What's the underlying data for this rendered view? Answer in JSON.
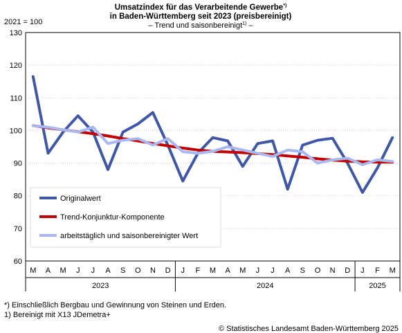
{
  "title_line1": "Umsatzindex für das Verarbeitende Gewerbe",
  "title_line1_sup": "*)",
  "title_line2": "in Baden-Württemberg seit 2023 (preisbereinigt)",
  "subtitle_pre": "– Trend und saisonbereinigt",
  "subtitle_sup": "1)",
  "subtitle_post": " –",
  "base_label": "2021 = 100",
  "footnote_1": "*) Einschließlich Bergbau und Gewinnung von Steinen und Erden.",
  "footnote_2": "1) Bereinigt mit X13 JDemetra+",
  "copyright": "© Statistisches Landesamt Baden-Württemberg 2025",
  "chart_data": {
    "type": "line",
    "ylim": [
      60,
      130
    ],
    "yticks": [
      60,
      70,
      80,
      90,
      100,
      110,
      120,
      130
    ],
    "grid": true,
    "legend_position": "bottom-left",
    "categories": [
      "M",
      "A",
      "M",
      "J",
      "J",
      "A",
      "S",
      "O",
      "N",
      "D",
      "J",
      "F",
      "M",
      "A",
      "M",
      "J",
      "J",
      "A",
      "S",
      "O",
      "N",
      "D",
      "J",
      "F",
      "M"
    ],
    "year_groups": [
      {
        "label": "2023",
        "start": 0,
        "end": 9
      },
      {
        "label": "2024",
        "start": 10,
        "end": 21
      },
      {
        "label": "2025",
        "start": 22,
        "end": 24
      }
    ],
    "series": [
      {
        "name": "Originalwert",
        "color": "#3f57a6",
        "width": 4,
        "values": [
          116.5,
          93.0,
          99.5,
          104.5,
          99.5,
          88.0,
          99.5,
          102.0,
          105.5,
          95.5,
          84.5,
          93.0,
          97.8,
          96.8,
          89.0,
          96.0,
          96.8,
          82.0,
          95.5,
          97.0,
          97.6,
          90.0,
          81.0,
          88.5,
          97.8
        ]
      },
      {
        "name": "Trend-Konjunktur-Komponente",
        "color": "#c20000",
        "width": 4,
        "values": [
          101.5,
          100.8,
          100.2,
          99.6,
          99.0,
          98.3,
          97.5,
          96.8,
          96.0,
          95.3,
          94.6,
          94.0,
          93.6,
          93.4,
          93.2,
          92.9,
          92.6,
          92.2,
          91.8,
          91.3,
          90.9,
          90.6,
          90.4,
          90.3,
          90.3
        ]
      },
      {
        "name": "arbeitstäglich und saisonbereinigter Wert",
        "color": "#a9b9f0",
        "width": 4,
        "values": [
          101.5,
          101.0,
          100.2,
          99.5,
          101.0,
          96.0,
          97.0,
          97.5,
          95.5,
          97.5,
          93.5,
          93.0,
          93.6,
          95.0,
          94.0,
          93.0,
          92.0,
          94.0,
          93.5,
          90.0,
          91.0,
          91.5,
          89.5,
          91.0,
          90.5
        ]
      }
    ]
  }
}
